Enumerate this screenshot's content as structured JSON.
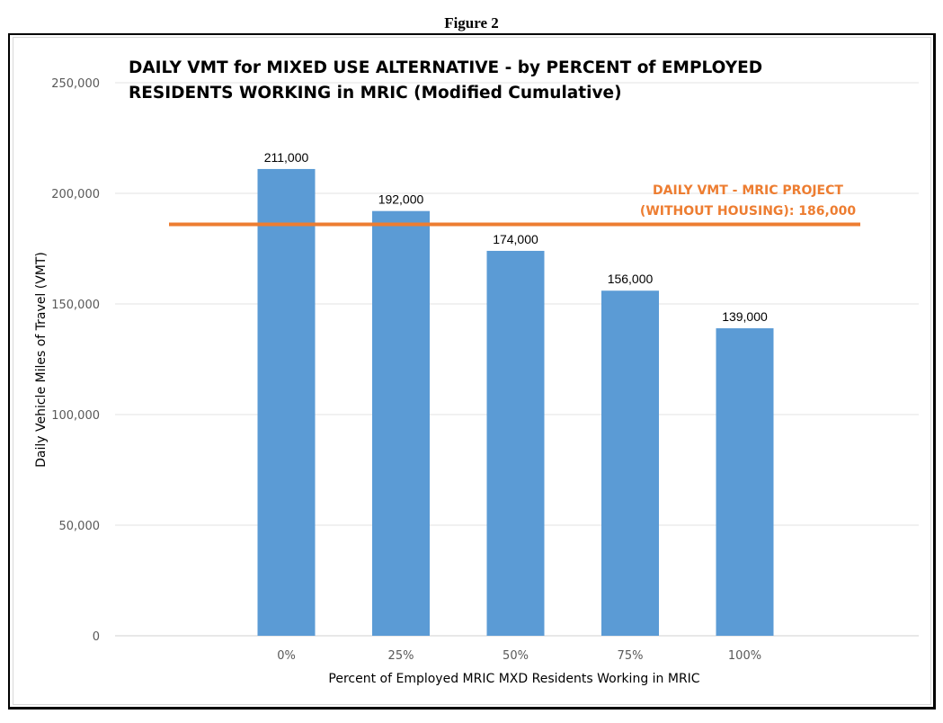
{
  "figure_caption": "Figure 2",
  "chart_data": {
    "type": "bar",
    "title": "DAILY VMT for MIXED USE ALTERNATIVE - by PERCENT of EMPLOYED RESIDENTS WORKING in MRIC (Modified Cumulative)",
    "title_lines": [
      "DAILY VMT for MIXED USE ALTERNATIVE - by PERCENT of EMPLOYED",
      "RESIDENTS WORKING in MRIC (Modified Cumulative)"
    ],
    "xlabel": "Percent of Employed MRIC MXD Residents Working in MRIC",
    "ylabel": "Daily Vehicle Miles of Travel (VMT)",
    "categories": [
      "0%",
      "25%",
      "50%",
      "75%",
      "100%"
    ],
    "values": [
      211000,
      192000,
      174000,
      156000,
      139000
    ],
    "data_labels": [
      "211,000",
      "192,000",
      "174,000",
      "156,000",
      "139,000"
    ],
    "ylim": [
      0,
      250000
    ],
    "yticks": [
      0,
      50000,
      100000,
      150000,
      200000,
      250000
    ],
    "ytick_labels": [
      "0",
      "50,000",
      "100,000",
      "150,000",
      "200,000",
      "250,000"
    ],
    "grid": true,
    "bar_color": "#5b9bd5",
    "reference_line": {
      "value": 186000,
      "color": "#ed7d31",
      "label_lines": [
        "DAILY VMT - MRIC PROJECT",
        "(WITHOUT HOUSING): 186,000"
      ]
    },
    "legend": "none"
  }
}
